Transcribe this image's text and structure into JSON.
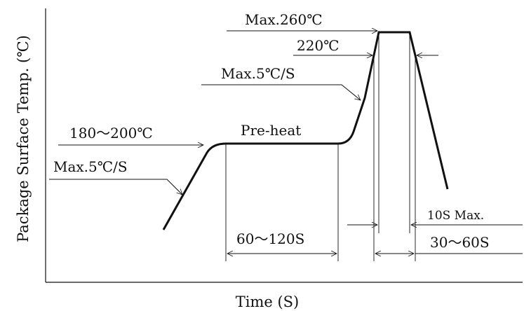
{
  "axes": {
    "y_label": "Package Surface Temp. (℃)",
    "x_label": "Time (S)"
  },
  "annotations": {
    "peak_max": "Max.260℃",
    "reflow_temp": "220℃",
    "ramp_up_reflow": "Max.5℃/S",
    "preheat_range": "180～200℃",
    "ramp_up_preheat": "Max.5℃/S",
    "preheat_label": "Pre-heat",
    "preheat_time": "60～120S",
    "peak_time": "10S Max.",
    "reflow_time": "30～60S"
  },
  "colors": {
    "ink": "#111111",
    "background": "#ffffff"
  }
}
